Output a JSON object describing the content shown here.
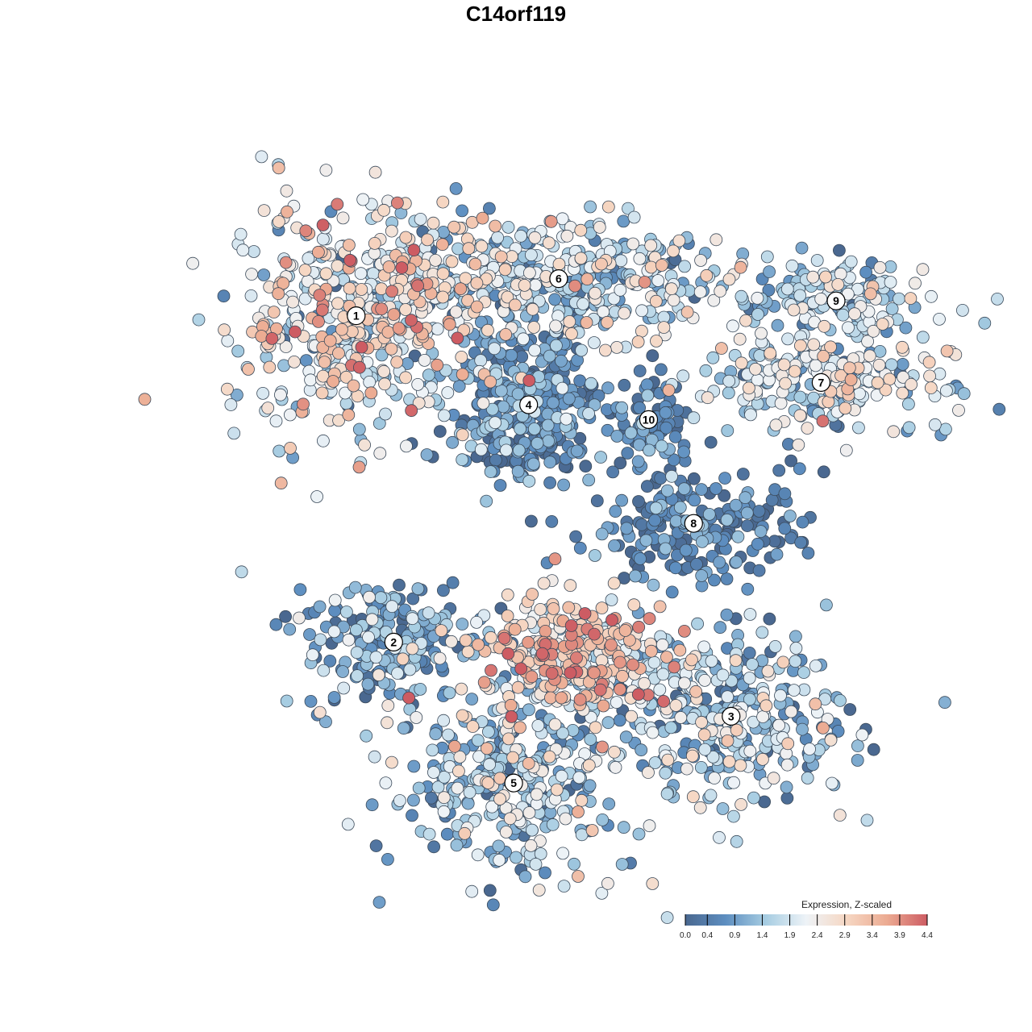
{
  "chart_data": {
    "type": "scatter",
    "title": "C14orf119",
    "colorbar": {
      "title": "Expression, Z-scaled",
      "ticks": [
        "0.0",
        "0.4",
        "0.9",
        "1.4",
        "1.9",
        "2.4",
        "2.9",
        "3.4",
        "3.9",
        "4.4"
      ],
      "range": [
        0.0,
        4.4
      ],
      "colors": [
        "#4a6890",
        "#5d8ec0",
        "#a7cde2",
        "#eef3f7",
        "#f6d7c3",
        "#ecab92",
        "#cd5c63"
      ]
    },
    "clusters": [
      {
        "label": "1",
        "x": 0.26,
        "y": 0.77,
        "mean_expression": 2.3
      },
      {
        "label": "2",
        "x": 0.31,
        "y": 0.33,
        "mean_expression": 1.0
      },
      {
        "label": "3",
        "x": 0.76,
        "y": 0.23,
        "mean_expression": 1.4
      },
      {
        "label": "4",
        "x": 0.49,
        "y": 0.65,
        "mean_expression": 0.6
      },
      {
        "label": "5",
        "x": 0.47,
        "y": 0.14,
        "mean_expression": 1.5
      },
      {
        "label": "6",
        "x": 0.53,
        "y": 0.82,
        "mean_expression": 1.9
      },
      {
        "label": "7",
        "x": 0.88,
        "y": 0.68,
        "mean_expression": 1.9
      },
      {
        "label": "8",
        "x": 0.71,
        "y": 0.49,
        "mean_expression": 0.5
      },
      {
        "label": "9",
        "x": 0.9,
        "y": 0.79,
        "mean_expression": 1.6
      },
      {
        "label": "10",
        "x": 0.65,
        "y": 0.63,
        "mean_expression": 0.6
      },
      {
        "label": "",
        "x": 0.55,
        "y": 0.31,
        "mean_expression": 2.9
      }
    ]
  }
}
